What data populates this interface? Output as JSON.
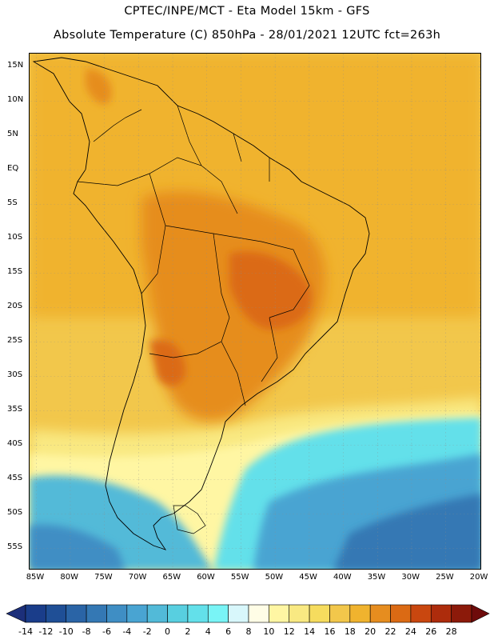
{
  "header": {
    "line1": "CPTEC/INPE/MCT -   Eta Model 15km - GFS",
    "line2": "Absolute Temperature (C) 850hPa - 28/01/2021 12UTC fct=263h"
  },
  "map": {
    "lat_labels": [
      "15N",
      "10N",
      "5N",
      "EQ",
      "5S",
      "10S",
      "15S",
      "20S",
      "25S",
      "30S",
      "35S",
      "40S",
      "45S",
      "50S",
      "55S"
    ],
    "lon_labels": [
      "85W",
      "80W",
      "75W",
      "70W",
      "65W",
      "60W",
      "55W",
      "50W",
      "45W",
      "40W",
      "35W",
      "30W",
      "25W",
      "20W"
    ]
  },
  "colorbar": {
    "labels": [
      "-14",
      "-12",
      "-10",
      "-8",
      "-6",
      "-4",
      "-2",
      "0",
      "2",
      "4",
      "6",
      "8",
      "10",
      "12",
      "14",
      "16",
      "18",
      "20",
      "22",
      "24",
      "26",
      "28"
    ],
    "colors": [
      "#1a3d8a",
      "#1f4f96",
      "#2a64a6",
      "#3478b4",
      "#3f8ec4",
      "#49a4d2",
      "#52bad8",
      "#58cfe0",
      "#63e0ea",
      "#79f4f6",
      "#d8f7fb",
      "#fffde6",
      "#fff6a3",
      "#f9e982",
      "#f6dc5e",
      "#f2c74b",
      "#f0b32e",
      "#e68d1f",
      "#db6a14",
      "#c9470f",
      "#ad2c0c",
      "#8c1a0a"
    ],
    "under_color": "#1c2f7a",
    "over_color": "#6e0b0b"
  }
}
